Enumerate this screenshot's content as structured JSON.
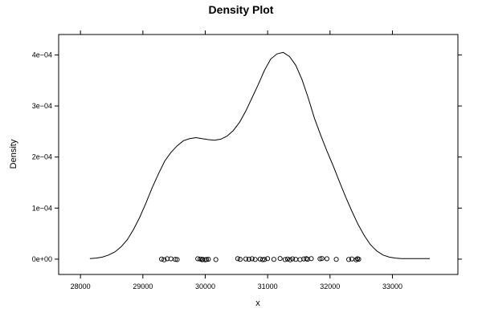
{
  "chart_data": {
    "type": "line",
    "title": "Density Plot",
    "xlabel": "x",
    "ylabel": "Density",
    "xlim": [
      27650,
      34050
    ],
    "ylim": [
      -3e-05,
      0.00044
    ],
    "x_ticks": [
      28000,
      29000,
      30000,
      31000,
      32000,
      33000
    ],
    "x_tick_labels": [
      "28000",
      "29000",
      "30000",
      "31000",
      "32000",
      "33000"
    ],
    "y_ticks": [
      0,
      0.0001,
      0.0002,
      0.0003,
      0.0004
    ],
    "y_tick_labels": [
      "0e+00",
      "1e−04",
      "2e−04",
      "3e−04",
      "4e−04"
    ],
    "grid": false,
    "legend": "none",
    "line_color": "#000000",
    "point_color": "#000000",
    "series": [
      {
        "kind": "density-curve",
        "x": [
          28150,
          28250,
          28350,
          28450,
          28550,
          28650,
          28750,
          28850,
          28950,
          29050,
          29150,
          29250,
          29350,
          29450,
          29550,
          29650,
          29750,
          29850,
          29950,
          30050,
          30150,
          30250,
          30350,
          30450,
          30550,
          30650,
          30750,
          30850,
          30950,
          31050,
          31150,
          31250,
          31350,
          31450,
          31550,
          31650,
          31750,
          31850,
          31950,
          32050,
          32150,
          32250,
          32350,
          32450,
          32550,
          32650,
          32750,
          32850,
          32950,
          33050,
          33150,
          33250,
          33350,
          33450,
          33600
        ],
        "y": [
          1e-06,
          2e-06,
          4e-06,
          8e-06,
          1.4e-05,
          2.4e-05,
          3.8e-05,
          5.8e-05,
          8.2e-05,
          0.00011,
          0.00014,
          0.000167,
          0.000192,
          0.000209,
          0.000222,
          0.000232,
          0.000236,
          0.000238,
          0.000236,
          0.000234,
          0.000233,
          0.000235,
          0.000241,
          0.000252,
          0.000268,
          0.00029,
          0.000316,
          0.000342,
          0.00037,
          0.000392,
          0.000402,
          0.000405,
          0.000397,
          0.00038,
          0.000352,
          0.000316,
          0.000276,
          0.000243,
          0.000212,
          0.000183,
          0.000152,
          0.000122,
          9.4e-05,
          6.8e-05,
          4.6e-05,
          2.8e-05,
          1.6e-05,
          8e-06,
          4e-06,
          2e-06,
          1e-06,
          1e-06,
          1e-06,
          1e-06,
          1e-06
        ]
      },
      {
        "kind": "jittered-points",
        "x": [
          29300,
          29340,
          29390,
          29450,
          29520,
          29550,
          29880,
          29920,
          29950,
          29960,
          30000,
          30020,
          30050,
          30170,
          30520,
          30560,
          30650,
          30700,
          30750,
          30800,
          30880,
          30920,
          30950,
          31000,
          31100,
          31200,
          31280,
          31320,
          31360,
          31400,
          31450,
          31520,
          31580,
          31620,
          31640,
          31700,
          31840,
          31870,
          31950,
          32100,
          32300,
          32350,
          32420,
          32440,
          32460
        ],
        "y": [
          2e-07,
          -1.2e-06,
          8e-07,
          6e-07,
          -4e-07,
          -8e-07,
          8e-07,
          2e-07,
          -1e-06,
          -4e-07,
          -1.2e-06,
          -6e-07,
          -2e-07,
          -8e-07,
          1e-06,
          -4e-07,
          4e-07,
          -2e-07,
          8e-07,
          -6e-07,
          2e-07,
          -1e-06,
          -6e-07,
          1e-06,
          -4e-07,
          1.2e-06,
          -8e-07,
          2e-07,
          -1.2e-06,
          6e-07,
          -4e-07,
          -8e-07,
          4e-07,
          1e-06,
          -2e-07,
          1e-06,
          6e-07,
          1.2e-06,
          8e-07,
          -4e-07,
          -6e-07,
          4e-07,
          -1.2e-06,
          8e-07,
          -2e-07
        ]
      }
    ]
  }
}
